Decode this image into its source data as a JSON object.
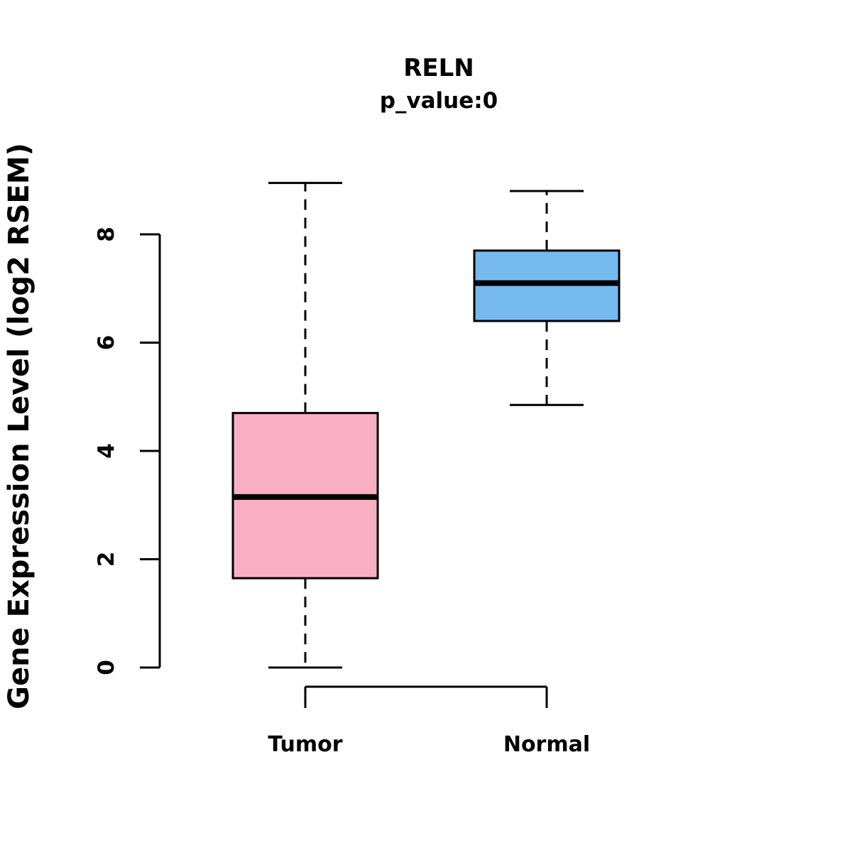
{
  "chart_data": {
    "type": "boxplot",
    "title": "RELN",
    "subtitle": "p_value:0",
    "ylabel": "Gene Expression Level (log2 RSEM)",
    "xlabel": "",
    "ylim": [
      0,
      9
    ],
    "yticks": [
      0,
      2,
      4,
      6,
      8
    ],
    "grid": false,
    "legend": "none",
    "categories": [
      "Tumor",
      "Normal"
    ],
    "boxes": [
      {
        "name": "Tumor",
        "color": "#F9AFC3",
        "whisker_low": 0.0,
        "q1": 1.65,
        "median": 3.15,
        "q3": 4.7,
        "whisker_high": 8.95
      },
      {
        "name": "Normal",
        "color": "#74BAEF",
        "whisker_low": 4.85,
        "q1": 6.4,
        "median": 7.1,
        "q3": 7.7,
        "whisker_high": 8.8
      }
    ],
    "line_color": "#000000"
  }
}
